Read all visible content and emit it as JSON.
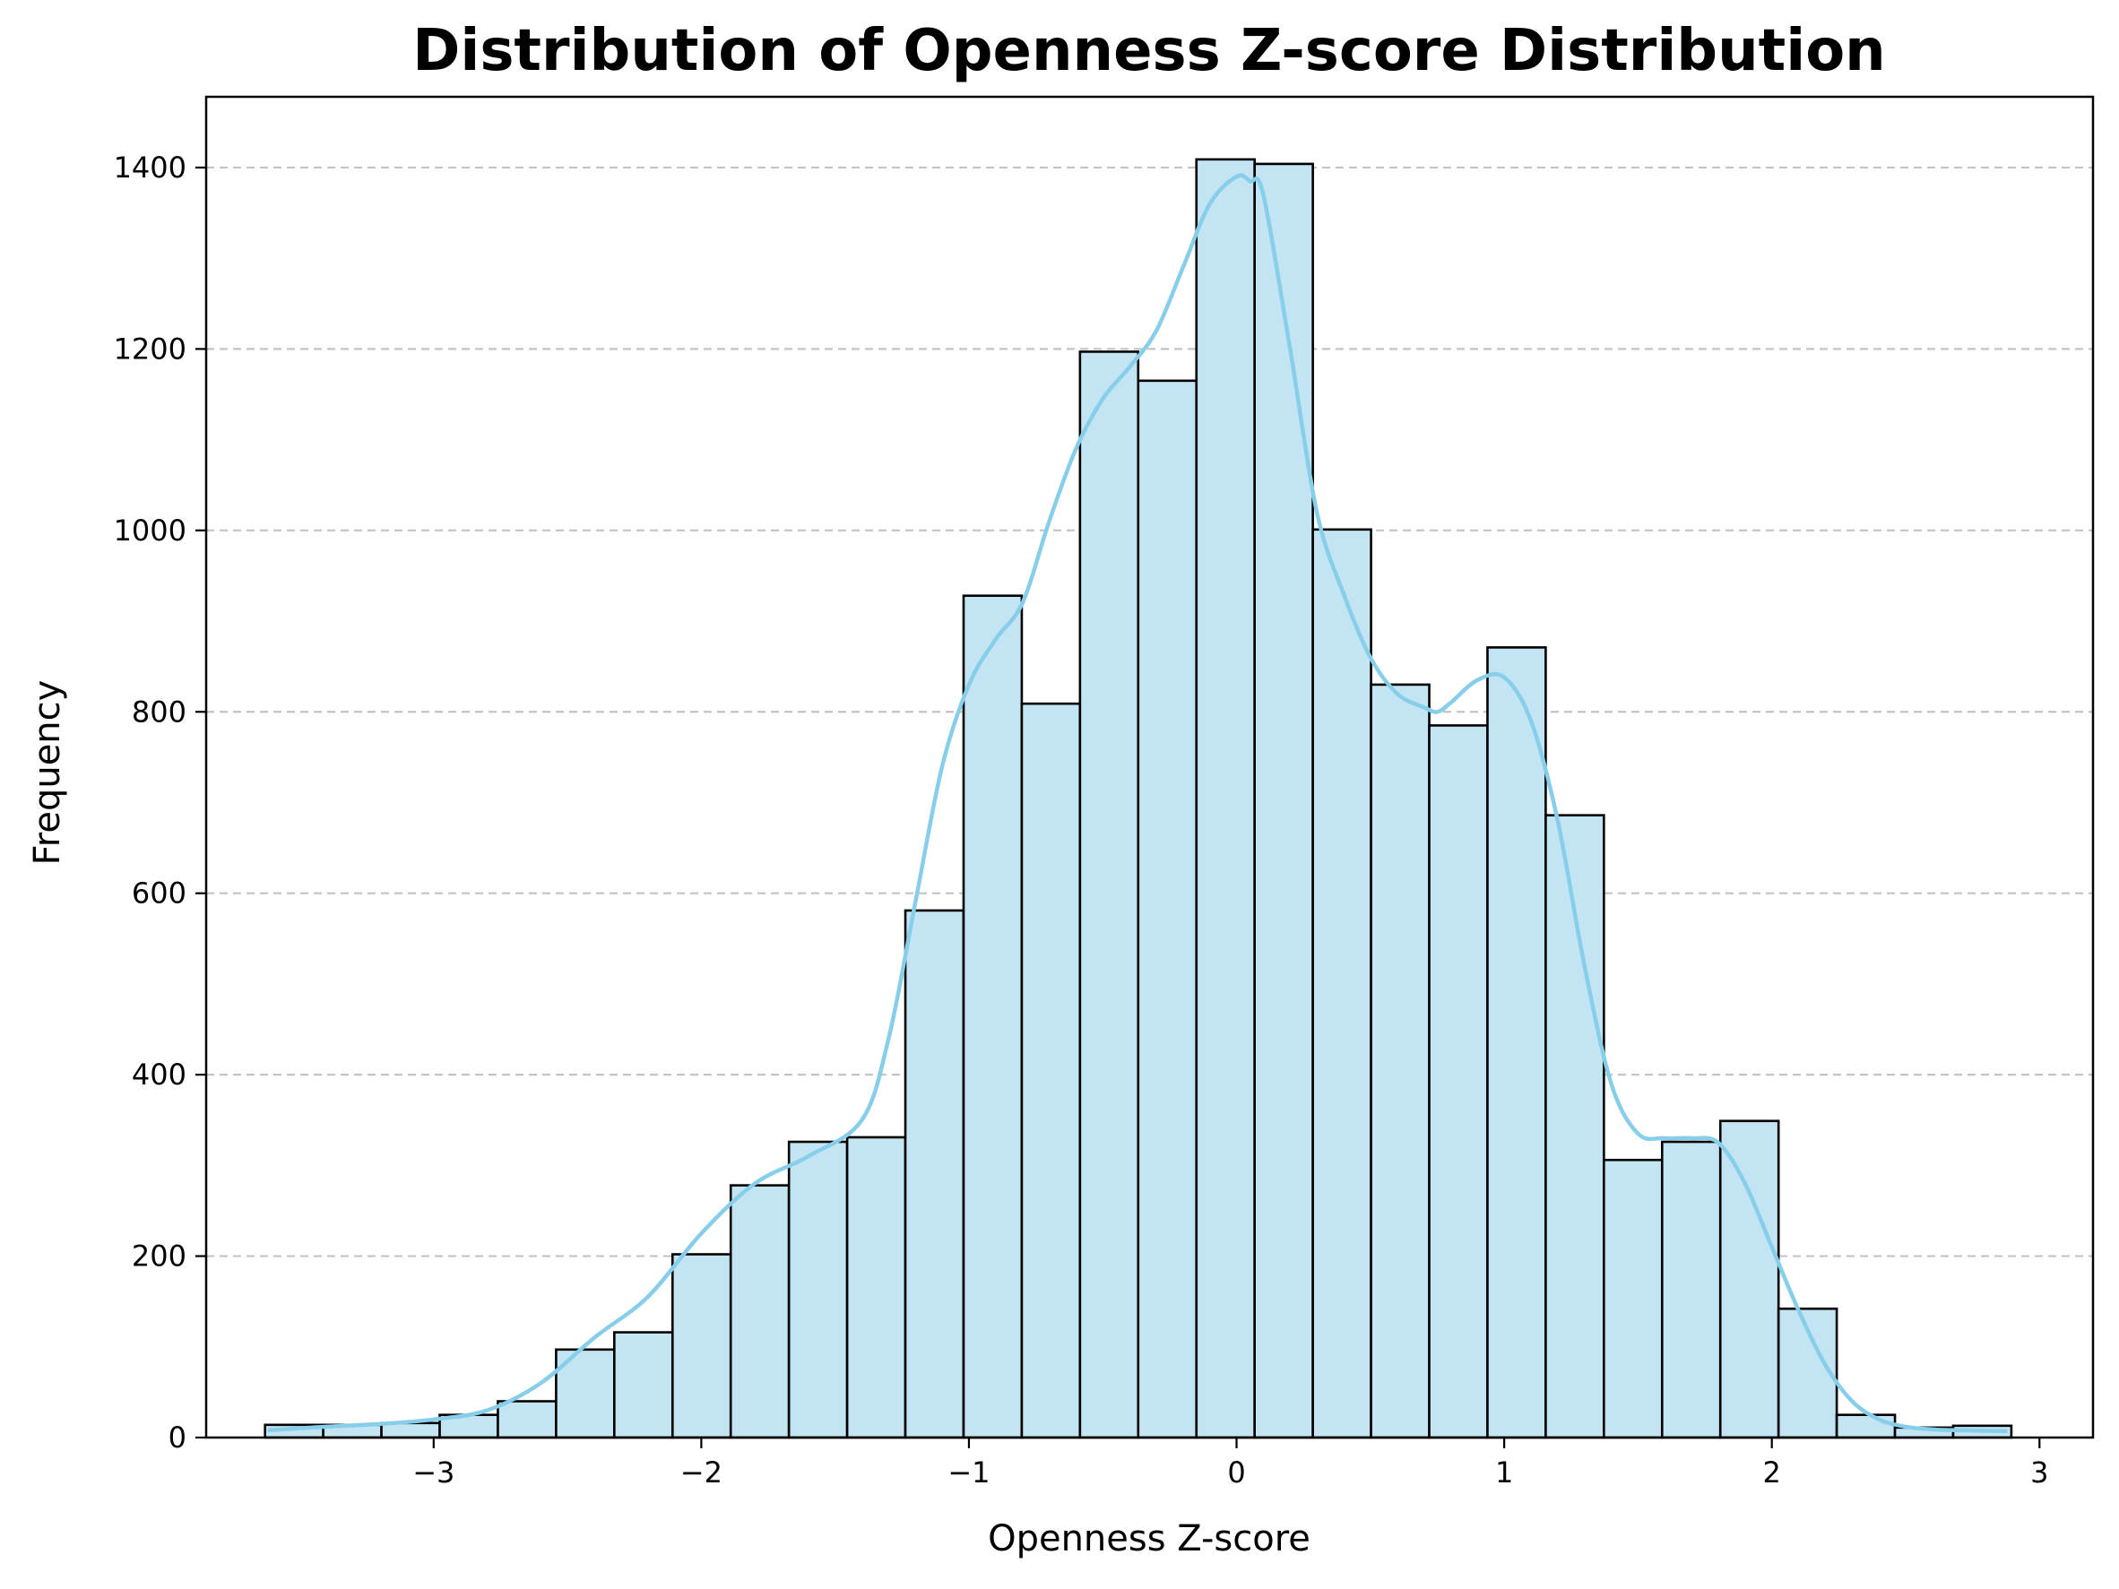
{
  "chart_data": {
    "type": "bar",
    "title": "Distribution of Openness Z-score Distribution",
    "xlabel": "Openness Z-score",
    "ylabel": "Frequency",
    "xlim": [
      -3.85,
      3.2
    ],
    "ylim": [
      0,
      1478
    ],
    "x_ticks": [
      -3,
      -2,
      -1,
      0,
      1,
      2,
      3
    ],
    "x_tick_labels": [
      "−3",
      "−2",
      "−1",
      "0",
      "1",
      "2",
      "3"
    ],
    "y_ticks": [
      0,
      200,
      400,
      600,
      800,
      1000,
      1200,
      1400
    ],
    "y_tick_labels": [
      "0",
      "200",
      "400",
      "600",
      "800",
      "1000",
      "1200",
      "1400"
    ],
    "grid": {
      "y": true,
      "x": false,
      "style": "dashed"
    },
    "bins": {
      "start": -3.63,
      "width": 0.2175,
      "counts": [
        14,
        14,
        16,
        25,
        40,
        97,
        116,
        202,
        278,
        326,
        331,
        581,
        928,
        809,
        1197,
        1165,
        1409,
        1404,
        1001,
        830,
        785,
        871,
        686,
        306,
        326,
        349,
        142,
        25,
        11,
        13
      ]
    },
    "kde": {
      "x": [
        -3.62,
        -3.4,
        -3.2,
        -3.0,
        -2.8,
        -2.6,
        -2.4,
        -2.2,
        -2.0,
        -1.8,
        -1.6,
        -1.4,
        -1.3,
        -1.2,
        -1.1,
        -1.0,
        -0.9,
        -0.8,
        -0.7,
        -0.6,
        -0.5,
        -0.4,
        -0.3,
        -0.2,
        -0.1,
        0.0,
        0.05,
        0.1,
        0.2,
        0.3,
        0.4,
        0.5,
        0.6,
        0.7,
        0.75,
        0.8,
        0.9,
        1.0,
        1.1,
        1.2,
        1.3,
        1.4,
        1.5,
        1.6,
        1.7,
        1.8,
        1.9,
        2.0,
        2.1,
        2.2,
        2.3,
        2.4,
        2.5,
        2.6,
        2.7,
        2.88
      ],
      "y": [
        8,
        12,
        15,
        20,
        30,
        60,
        110,
        155,
        225,
        280,
        310,
        350,
        440,
        590,
        740,
        830,
        880,
        920,
        1010,
        1090,
        1145,
        1180,
        1220,
        1290,
        1360,
        1390,
        1385,
        1370,
        1200,
        1020,
        930,
        860,
        820,
        805,
        800,
        810,
        835,
        838,
        790,
        680,
        520,
        390,
        335,
        330,
        330,
        325,
        280,
        210,
        140,
        80,
        40,
        20,
        12,
        9,
        8,
        7
      ]
    },
    "colors": {
      "bar_fill": "#c3e4f2",
      "bar_edge": "#000000",
      "kde_line": "#87ceeb",
      "grid": "#c4c4c4"
    }
  }
}
